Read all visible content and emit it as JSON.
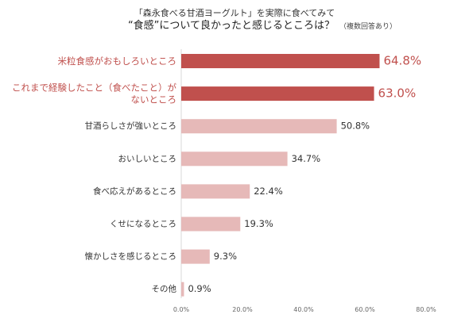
{
  "chart_data": {
    "type": "bar",
    "orientation": "horizontal",
    "title": "「森永食べる甘酒ヨーグルト」を実際に食べてみて",
    "subtitle": "“食感”について良かったと感じるところは？",
    "note": "（複数回答あり）",
    "categories": [
      [
        "米粒食感がおもしろいところ"
      ],
      [
        "これまで経験したこと（食べたこと）が",
        "ないところ"
      ],
      [
        "甘酒らしさが強いところ"
      ],
      [
        "おいしいところ"
      ],
      [
        "食べ応えがあるところ"
      ],
      [
        "くせになるところ"
      ],
      [
        "懐かしさを感じるところ"
      ],
      [
        "その他"
      ]
    ],
    "values": [
      64.8,
      63.0,
      50.8,
      34.7,
      22.4,
      19.3,
      9.3,
      0.9
    ],
    "value_labels": [
      "64.8%",
      "63.0%",
      "50.8%",
      "34.7%",
      "22.4%",
      "19.3%",
      "9.3%",
      "0.9%"
    ],
    "highlight_top": 2,
    "xlim": [
      0,
      80
    ],
    "x_ticks": [
      0,
      20,
      40,
      60,
      80
    ],
    "x_tick_labels": [
      "0.0%",
      "20.0%",
      "40.0%",
      "60.0%",
      "80.0%"
    ],
    "grid": false,
    "colors": {
      "highlight": "#c0504d",
      "normal": "#e6b9b8",
      "highlight_text": "#c0504d",
      "normal_text": "#333333"
    }
  }
}
